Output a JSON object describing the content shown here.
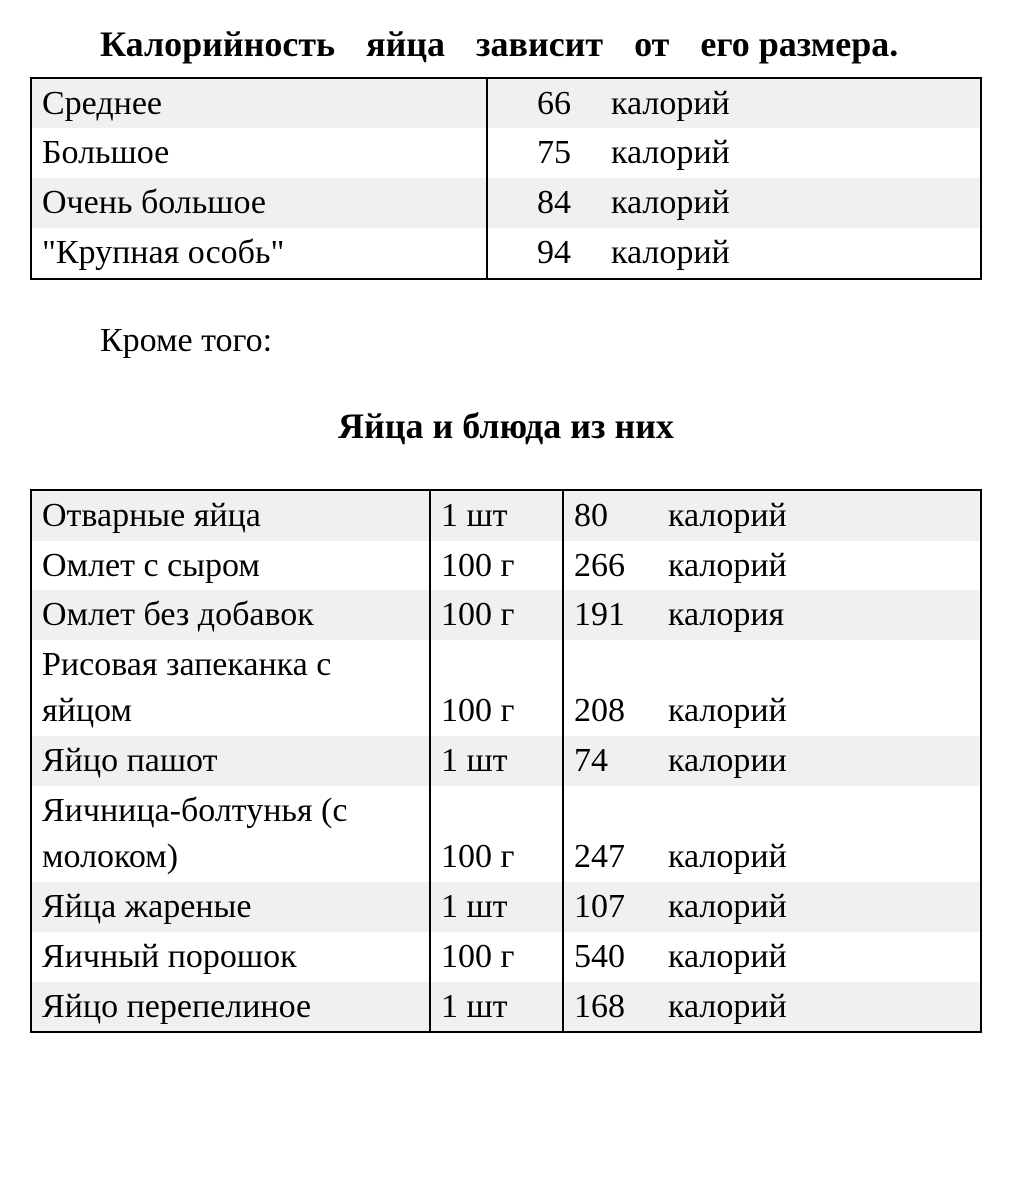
{
  "title_line1": "Калорийность яйца зависит от его",
  "title_line2": "размера.",
  "table1": {
    "rows": [
      {
        "size": "Среднее",
        "value": "66",
        "unit": "калорий"
      },
      {
        "size": "Большое",
        "value": "75",
        "unit": "калорий"
      },
      {
        "size": "Очень большое",
        "value": "84",
        "unit": "калорий"
      },
      {
        "size": "\"Крупная особь\"",
        "value": "94",
        "unit": "калорий"
      }
    ],
    "border_color": "#000000",
    "stripe_color": "#f0f0f0",
    "col_widths": [
      "48%",
      "12%",
      "40%"
    ]
  },
  "subtitle": "Кроме того:",
  "heading2": "Яйца и блюда из них",
  "table2": {
    "rows": [
      {
        "dish": "Отварные яйца",
        "amount": "1 шт",
        "value": "80",
        "unit": "калорий",
        "shade": true
      },
      {
        "dish": "Омлет с сыром",
        "amount": "100 г",
        "value": "266",
        "unit": "калорий",
        "shade": false
      },
      {
        "dish": "Омлет без добавок",
        "amount": "100 г",
        "value": "191",
        "unit": "калория",
        "shade": true
      },
      {
        "dish": "Рисовая запеканка с яйцом",
        "amount": "100 г",
        "value": "208",
        "unit": "калорий",
        "shade": false,
        "justify": true
      },
      {
        "dish": "Яйцо пашот",
        "amount": "1 шт",
        "value": "74",
        "unit": "калории",
        "shade": true
      },
      {
        "dish": "Яичница-болтунья (с молоком)",
        "amount": "100 г",
        "value": "247",
        "unit": "калорий",
        "shade": false
      },
      {
        "dish": "Яйца жареные",
        "amount": "1 шт",
        "value": "107",
        "unit": "калорий",
        "shade": true
      },
      {
        "dish": "Яичный порошок",
        "amount": "100 г",
        "value": "540",
        "unit": "калорий",
        "shade": false
      },
      {
        "dish": "Яйцо перепелиное",
        "amount": "1 шт",
        "value": "168",
        "unit": "калорий",
        "shade": true
      }
    ],
    "border_color": "#000000",
    "stripe_color": "#f0f0f0",
    "col_widths": [
      "42%",
      "14%",
      "10%",
      "34%"
    ]
  },
  "styling": {
    "font_family": "Times New Roman",
    "body_fontsize": 34,
    "title_fontsize": 36,
    "background": "#ffffff",
    "text_color": "#000000"
  }
}
